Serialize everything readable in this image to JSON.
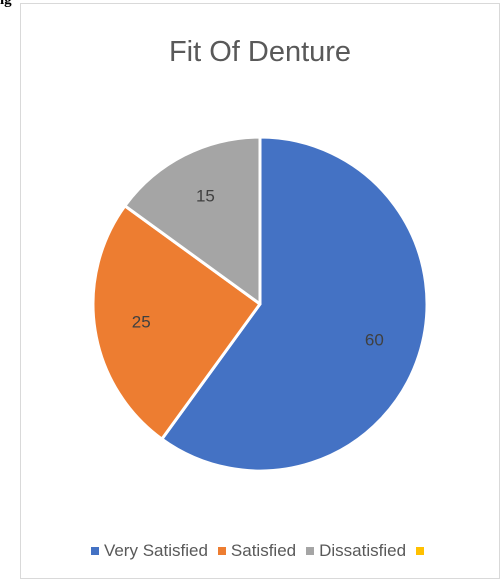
{
  "caption": "ig",
  "chart_data": {
    "type": "pie",
    "title": "Fit Of Denture",
    "categories": [
      "Very Satisfied",
      "Satisfied",
      "Dissatisfied",
      ""
    ],
    "values": [
      60,
      25,
      15,
      0
    ],
    "colors": [
      "#4472c4",
      "#ed7d31",
      "#a5a5a5",
      "#ffc000"
    ],
    "legend_position": "bottom",
    "start_angle": "12 o'clock, clockwise",
    "data_labels": [
      "60",
      "25",
      "15",
      ""
    ]
  }
}
